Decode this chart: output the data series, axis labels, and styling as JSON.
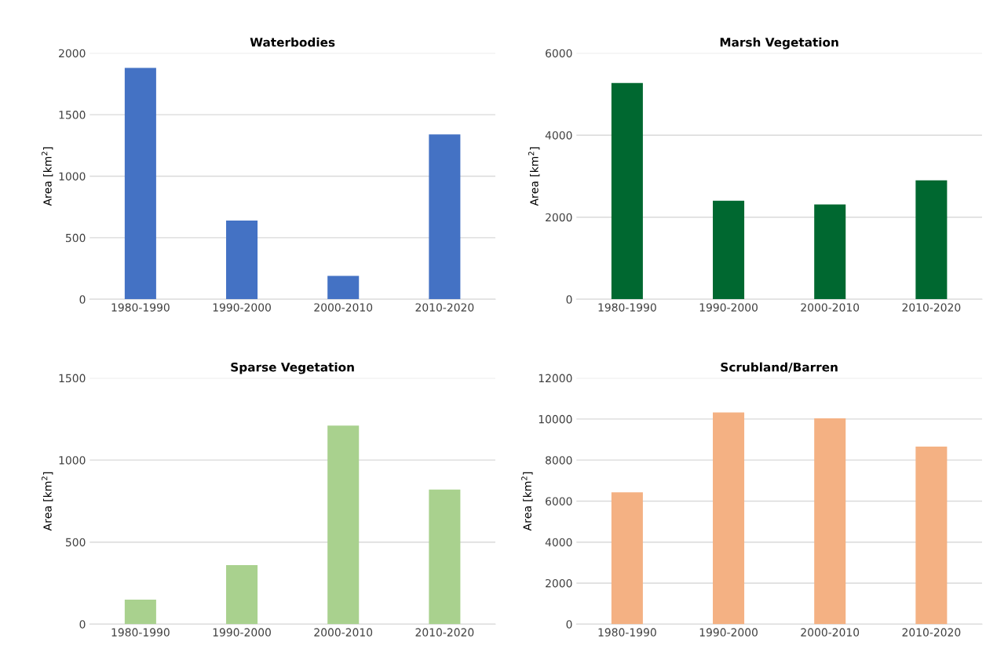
{
  "chart_data": [
    {
      "type": "bar",
      "title": "Waterbodies",
      "ylabel": "Area [km$^{2}$]",
      "categories": [
        "1980-1990",
        "1990-2000",
        "2000-2010",
        "2010-2020"
      ],
      "values": [
        1880,
        640,
        190,
        1340
      ],
      "color": "#4472c4",
      "ylim": [
        0,
        2000
      ],
      "yticks": [
        0,
        500,
        1000,
        1500,
        2000
      ],
      "grid": "y"
    },
    {
      "type": "bar",
      "title": "Marsh Vegetation",
      "ylabel": "Area [km$^{2}$]",
      "categories": [
        "1980-1990",
        "1990-2000",
        "2000-2010",
        "2010-2020"
      ],
      "values": [
        5270,
        2400,
        2310,
        2900
      ],
      "color": "#006830",
      "ylim": [
        0,
        6000
      ],
      "yticks": [
        0,
        2000,
        4000,
        6000
      ],
      "grid": "y"
    },
    {
      "type": "bar",
      "title": "Sparse Vegetation",
      "ylabel": "Area [km$^{2}$]",
      "categories": [
        "1980-1990",
        "1990-2000",
        "2000-2010",
        "2010-2020"
      ],
      "values": [
        150,
        360,
        1210,
        820
      ],
      "color": "#a9d18e",
      "ylim": [
        0,
        1500
      ],
      "yticks": [
        0,
        500,
        1000,
        1500
      ],
      "grid": "y"
    },
    {
      "type": "bar",
      "title": "Scrubland/Barren",
      "ylabel": "Area [km$^{2}$]",
      "categories": [
        "1980-1990",
        "1990-2000",
        "2000-2010",
        "2010-2020"
      ],
      "values": [
        6430,
        10320,
        10030,
        8660
      ],
      "color": "#f4b183",
      "ylim": [
        0,
        12000
      ],
      "yticks": [
        0,
        2000,
        4000,
        6000,
        8000,
        10000,
        12000
      ],
      "grid": "y"
    }
  ]
}
